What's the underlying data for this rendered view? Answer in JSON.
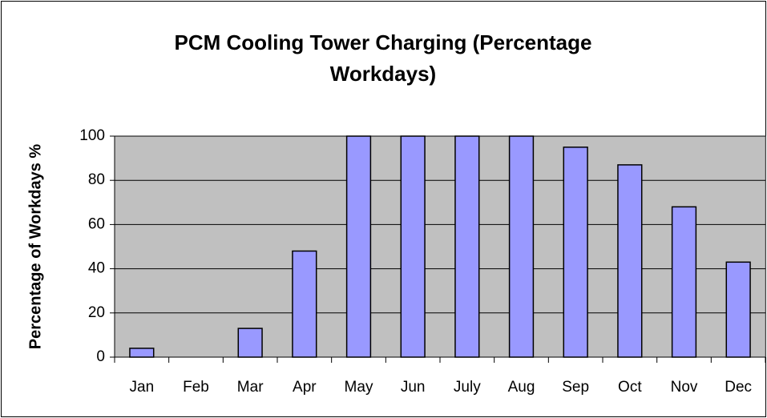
{
  "chart_data": {
    "type": "bar",
    "title": "PCM Cooling Tower Charging (Percentage Workdays)",
    "y_label": "Percentage of Workdays %",
    "categories": [
      "Jan",
      "Feb",
      "Mar",
      "Apr",
      "May",
      "Jun",
      "July",
      "Aug",
      "Sep",
      "Oct",
      "Nov",
      "Dec"
    ],
    "values": [
      4,
      0,
      13,
      48,
      100,
      100,
      100,
      100,
      95,
      87,
      68,
      43
    ],
    "color": "#9999ff",
    "ylim": [
      0,
      100
    ],
    "yticks": [
      0,
      20,
      40,
      60,
      80,
      100
    ],
    "grid": true
  }
}
